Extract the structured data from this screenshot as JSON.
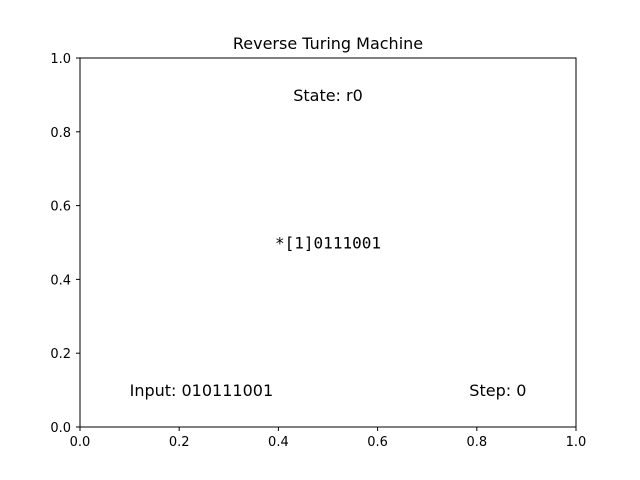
{
  "chart_data": {
    "type": "scatter",
    "title": "Reverse Turing Machine",
    "xlabel": "",
    "ylabel": "",
    "xlim": [
      0.0,
      1.0
    ],
    "ylim": [
      0.0,
      1.0
    ],
    "grid": false,
    "x_ticks": [
      "0.0",
      "0.2",
      "0.4",
      "0.6",
      "0.8",
      "1.0"
    ],
    "y_ticks": [
      "0.0",
      "0.2",
      "0.4",
      "0.6",
      "0.8",
      "1.0"
    ],
    "annotations": [
      {
        "name": "state-annotation",
        "text": "State: r0",
        "x": 0.5,
        "y": 0.9,
        "anchor": "middle",
        "mono": false
      },
      {
        "name": "tape-annotation",
        "text": "*[1]0111001",
        "x": 0.5,
        "y": 0.5,
        "anchor": "middle",
        "mono": true
      },
      {
        "name": "input-annotation",
        "text": "Input: 010111001",
        "x": 0.1,
        "y": 0.1,
        "anchor": "start",
        "mono": false
      },
      {
        "name": "step-annotation",
        "text": "Step: 0",
        "x": 0.9,
        "y": 0.1,
        "anchor": "end",
        "mono": false
      }
    ]
  }
}
